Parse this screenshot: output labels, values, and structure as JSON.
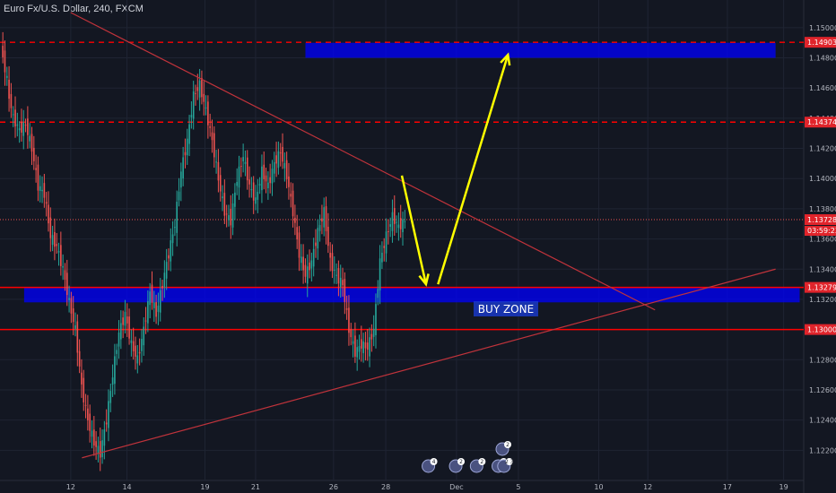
{
  "header": {
    "title": "Euro Fx/U.S. Dollar, 240, FXCM"
  },
  "colors": {
    "background": "#131722",
    "grid": "#1f2433",
    "up": "#26a69a",
    "down": "#ef5350",
    "zone": "#0000ff",
    "arrow": "#ffff00",
    "level": "#ff0000",
    "trend": "#c0333b"
  },
  "chart_data": {
    "type": "candlestick",
    "title": "Euro Fx/U.S. Dollar, 240, FXCM",
    "ylim": [
      1.12,
      1.151
    ],
    "y_ticks": [
      1.122,
      1.124,
      1.126,
      1.128,
      1.13,
      1.132,
      1.134,
      1.136,
      1.138,
      1.14,
      1.142,
      1.144,
      1.146,
      1.148,
      1.15
    ],
    "x_ticks": [
      "12",
      "14",
      "19",
      "21",
      "26",
      "28",
      "Dec",
      "5",
      "10",
      "12",
      "17",
      "19"
    ],
    "grid": true,
    "price_labels": [
      {
        "text": "1.14903",
        "value": 1.14903,
        "style": "dashed"
      },
      {
        "text": "1.14374",
        "value": 1.14374,
        "style": "dashed"
      },
      {
        "text": "1.13728",
        "value": 1.13728,
        "style": "current",
        "countdown": "03:59:23"
      },
      {
        "text": "1.13279",
        "value": 1.13279,
        "style": "solid"
      },
      {
        "text": "1.13000",
        "value": 1.13,
        "style": "solid"
      }
    ],
    "zones": [
      {
        "label": "",
        "low": 1.148,
        "high": 1.149
      },
      {
        "label": "BUY ZONE",
        "low": 1.1318,
        "high": 1.1328
      }
    ],
    "anchors": [
      [
        1.1488,
        1.1465
      ],
      [
        1.1462,
        1.144
      ],
      [
        1.144,
        1.1432
      ],
      [
        1.1432,
        1.1436
      ],
      [
        1.1436,
        1.142
      ],
      [
        1.142,
        1.1395
      ],
      [
        1.1395,
        1.139
      ],
      [
        1.139,
        1.1362
      ],
      [
        1.1362,
        1.1355
      ],
      [
        1.1355,
        1.134
      ],
      [
        1.134,
        1.1318
      ],
      [
        1.1318,
        1.13
      ],
      [
        1.13,
        1.1262
      ],
      [
        1.1262,
        1.124
      ],
      [
        1.124,
        1.1225
      ],
      [
        1.1225,
        1.1218
      ],
      [
        1.1218,
        1.124
      ],
      [
        1.124,
        1.127
      ],
      [
        1.127,
        1.1298
      ],
      [
        1.1298,
        1.131
      ],
      [
        1.131,
        1.129
      ],
      [
        1.129,
        1.128
      ],
      [
        1.128,
        1.13
      ],
      [
        1.13,
        1.1325
      ],
      [
        1.1325,
        1.131
      ],
      [
        1.131,
        1.133
      ],
      [
        1.133,
        1.135
      ],
      [
        1.135,
        1.137
      ],
      [
        1.137,
        1.1405
      ],
      [
        1.1405,
        1.1425
      ],
      [
        1.1425,
        1.1455
      ],
      [
        1.1455,
        1.1462
      ],
      [
        1.1462,
        1.1445
      ],
      [
        1.1445,
        1.1425
      ],
      [
        1.1425,
        1.14
      ],
      [
        1.14,
        1.1378
      ],
      [
        1.1378,
        1.1372
      ],
      [
        1.1372,
        1.14
      ],
      [
        1.14,
        1.1415
      ],
      [
        1.1415,
        1.1395
      ],
      [
        1.1395,
        1.1385
      ],
      [
        1.1385,
        1.1405
      ],
      [
        1.1405,
        1.1395
      ],
      [
        1.1395,
        1.141
      ],
      [
        1.141,
        1.1418
      ],
      [
        1.1418,
        1.1402
      ],
      [
        1.1402,
        1.1378
      ],
      [
        1.1378,
        1.135
      ],
      [
        1.135,
        1.1336
      ],
      [
        1.1336,
        1.1345
      ],
      [
        1.1345,
        1.1365
      ],
      [
        1.1365,
        1.1378
      ],
      [
        1.1378,
        1.1345
      ],
      [
        1.1345,
        1.1335
      ],
      [
        1.1335,
        1.133
      ],
      [
        1.133,
        1.13
      ],
      [
        1.13,
        1.1285
      ],
      [
        1.1285,
        1.129
      ],
      [
        1.129,
        1.1288
      ],
      [
        1.1288,
        1.13
      ],
      [
        1.13,
        1.1345
      ],
      [
        1.1345,
        1.1362
      ],
      [
        1.1362,
        1.1375
      ],
      [
        1.1375,
        1.1368
      ],
      [
        1.1368,
        1.1372
      ]
    ],
    "trendlines": [
      {
        "x": [
          0.088,
          0.815
        ],
        "y": [
          1.151,
          1.1313
        ]
      },
      {
        "x": [
          0.102,
          0.965
        ],
        "y": [
          1.1215,
          1.134
        ]
      }
    ],
    "arrows": [
      {
        "x": [
          0.5,
          0.53
        ],
        "y": [
          1.1402,
          1.133
        ]
      },
      {
        "x": [
          0.545,
          0.632
        ],
        "y": [
          1.133,
          1.1482
        ]
      }
    ],
    "event_icons": [
      {
        "label": "4",
        "x": 0.533
      },
      {
        "label": "2",
        "x": 0.567
      },
      {
        "label": "2",
        "x": 0.593
      },
      {
        "label": "2",
        "x": 0.62
      },
      {
        "label": "2",
        "x": 0.625,
        "stacked": true
      },
      {
        "label": "2 3",
        "x": 0.627
      }
    ]
  }
}
